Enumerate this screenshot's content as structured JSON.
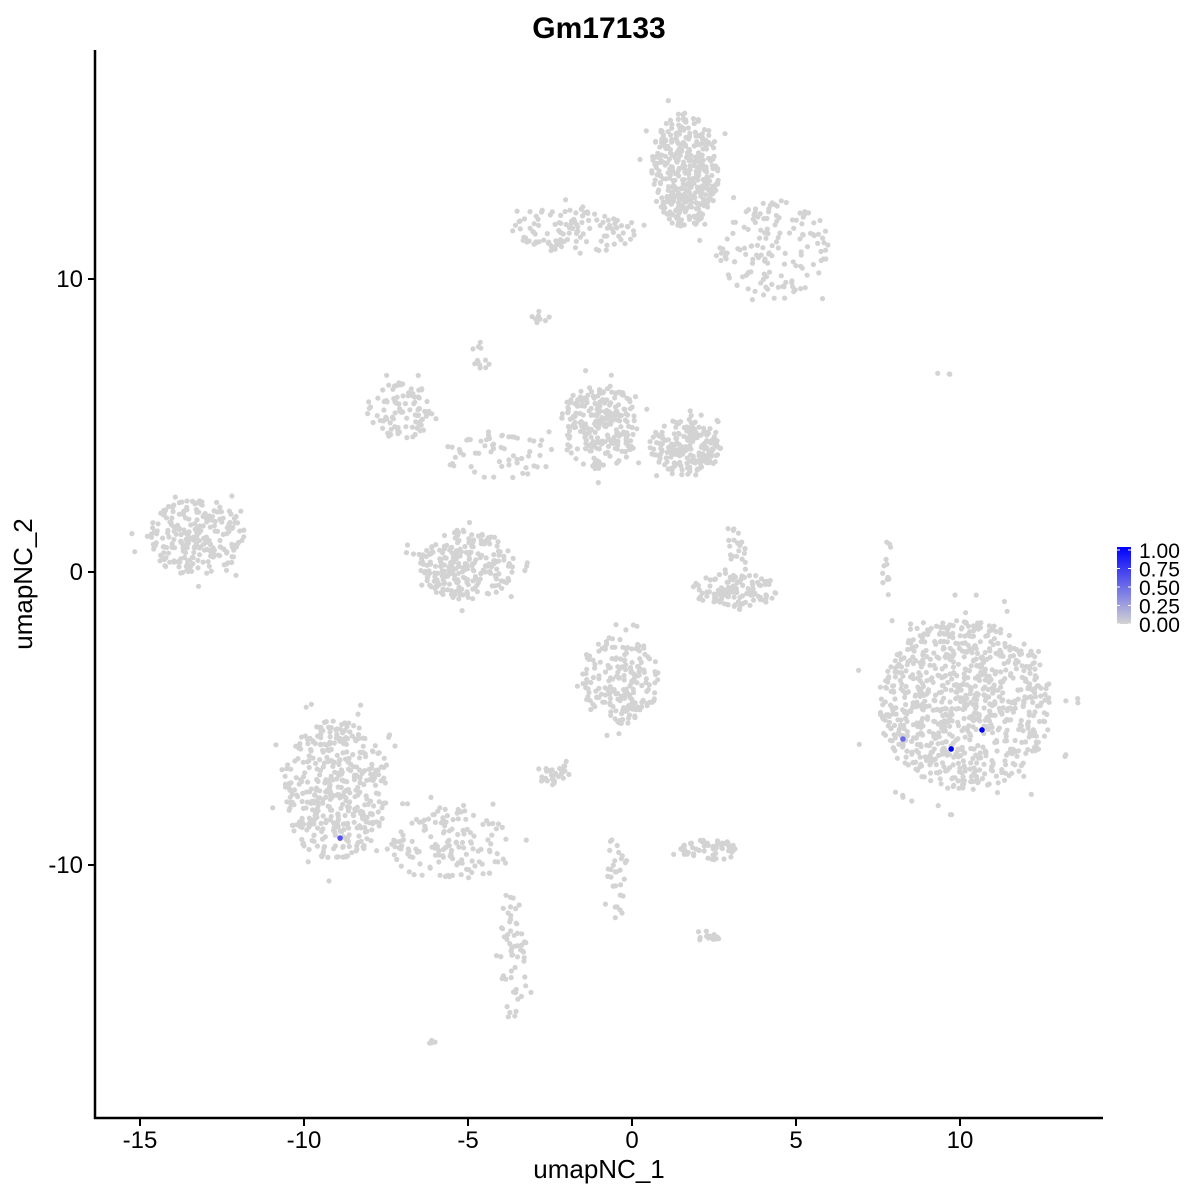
{
  "chart_data": {
    "type": "scatter",
    "title": "Gm17133",
    "xlabel": "umapNC_1",
    "ylabel": "umapNC_2",
    "xlim": [
      -16.4,
      14.4
    ],
    "ylim": [
      -18.6,
      17.8
    ],
    "xticks": [
      -15,
      -10,
      -5,
      0,
      5,
      10
    ],
    "yticks": [
      -10,
      0,
      10
    ],
    "xtick_labels": [
      "-15",
      "-10",
      "-5",
      "0",
      "5",
      "10"
    ],
    "ytick_labels": [
      "-10",
      "0",
      "10"
    ],
    "grid": false,
    "legend": {
      "placement": "right",
      "type": "colorbar",
      "low_color": "#d3d3d3",
      "high_color": "#0000ff",
      "range": [
        0,
        1
      ],
      "breaks": [
        "1.00",
        "0.75",
        "0.50",
        "0.25",
        "0.00"
      ]
    },
    "background_point_color": "#d3d3d3",
    "background_clusters": [
      {
        "center": [
          10.15,
          -4.54
        ],
        "spread": [
          2.65,
          2.9
        ],
        "count": 900
      },
      {
        "center": [
          1.62,
          13.72
        ],
        "spread": [
          1.07,
          1.96
        ],
        "count": 400
      },
      {
        "center": [
          4.36,
          11.0
        ],
        "spread": [
          1.7,
          1.7
        ],
        "count": 150
      },
      {
        "center": [
          -1.74,
          11.67
        ],
        "spread": [
          1.9,
          0.8
        ],
        "count": 120
      },
      {
        "center": [
          -13.3,
          1.2
        ],
        "spread": [
          1.5,
          1.3
        ],
        "count": 250
      },
      {
        "center": [
          -7.07,
          5.53
        ],
        "spread": [
          1.0,
          1.0
        ],
        "count": 100
      },
      {
        "center": [
          -0.98,
          5.0
        ],
        "spread": [
          1.2,
          1.5
        ],
        "count": 250
      },
      {
        "center": [
          1.62,
          4.27
        ],
        "spread": [
          1.1,
          0.95
        ],
        "count": 200
      },
      {
        "center": [
          -5.09,
          0.24
        ],
        "spread": [
          1.5,
          1.2
        ],
        "count": 250
      },
      {
        "center": [
          -4.02,
          4.0
        ],
        "spread": [
          1.8,
          0.8
        ],
        "count": 60
      },
      {
        "center": [
          -0.37,
          -3.69
        ],
        "spread": [
          1.2,
          1.5
        ],
        "count": 200
      },
      {
        "center": [
          -9.05,
          -7.44
        ],
        "spread": [
          1.6,
          2.4
        ],
        "count": 450
      },
      {
        "center": [
          -5.55,
          -9.32
        ],
        "spread": [
          1.8,
          1.3
        ],
        "count": 150
      },
      {
        "center": [
          -3.66,
          -13.07
        ],
        "spread": [
          0.5,
          2.2
        ],
        "count": 60
      },
      {
        "center": [
          3.14,
          -0.61
        ],
        "spread": [
          1.3,
          0.6
        ],
        "count": 120
      },
      {
        "center": [
          2.38,
          -9.49
        ],
        "spread": [
          0.9,
          0.35
        ],
        "count": 60
      },
      {
        "center": [
          -2.35,
          -6.93
        ],
        "spread": [
          0.6,
          0.4
        ],
        "count": 30
      },
      {
        "center": [
          -0.52,
          -10.5
        ],
        "spread": [
          0.4,
          1.4
        ],
        "count": 30
      },
      {
        "center": [
          3.2,
          0.92
        ],
        "spread": [
          0.3,
          0.6
        ],
        "count": 20
      },
      {
        "center": [
          7.8,
          0.07
        ],
        "spread": [
          0.2,
          1.0
        ],
        "count": 12
      },
      {
        "center": [
          2.32,
          -12.49
        ],
        "spread": [
          0.4,
          0.2
        ],
        "count": 15
      },
      {
        "center": [
          -4.63,
          7.3
        ],
        "spread": [
          0.3,
          0.6
        ],
        "count": 12
      },
      {
        "center": [
          -2.8,
          8.7
        ],
        "spread": [
          0.3,
          0.2
        ],
        "count": 8
      },
      {
        "center": [
          9.5,
          6.8
        ],
        "spread": [
          0.3,
          0.1
        ],
        "count": 3
      },
      {
        "center": [
          -6.1,
          -16.0
        ],
        "spread": [
          0.2,
          0.1
        ],
        "count": 4
      }
    ],
    "expressing_points": [
      {
        "x": 8.26,
        "y": -5.7,
        "value": 0.5
      },
      {
        "x": -8.9,
        "y": -9.08,
        "value": 0.6
      },
      {
        "x": 9.73,
        "y": -6.04,
        "value": 1.0
      },
      {
        "x": 10.67,
        "y": -5.39,
        "value": 1.0
      }
    ]
  }
}
